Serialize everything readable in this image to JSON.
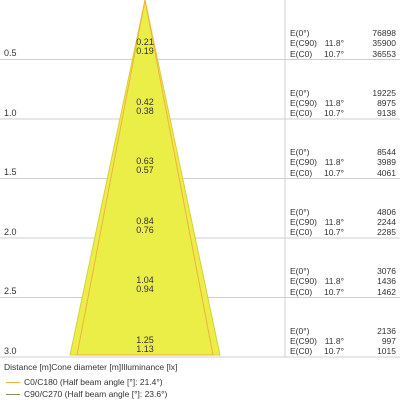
{
  "caption": "Distance [m]Cone diameter [m]Illuminance [lx]",
  "legend": [
    {
      "text": "C0/C180 (Half beam angle [°]: 21.4°)",
      "color": "#f0b040"
    },
    {
      "text": "C90/C270 (Half beam angle [°]: 23.6°)",
      "color": "#8c8c5a"
    }
  ],
  "colors": {
    "cone_fill": "#ecee48",
    "cone_edge": "#d4d040",
    "grid": "#cfcfcf"
  },
  "rows": [
    {
      "distance": "0.5",
      "d_c90": "0.21",
      "d_c0": "0.19",
      "e": [
        {
          "label": "E(0°)",
          "angle": "",
          "value": "76898"
        },
        {
          "label": "E(C90)",
          "angle": "11.8°",
          "value": "35900"
        },
        {
          "label": "E(C0)",
          "angle": "10.7°",
          "value": "36553"
        }
      ]
    },
    {
      "distance": "1.0",
      "d_c90": "0.42",
      "d_c0": "0.38",
      "e": [
        {
          "label": "E(0°)",
          "angle": "",
          "value": "19225"
        },
        {
          "label": "E(C90)",
          "angle": "11.8°",
          "value": "8975"
        },
        {
          "label": "E(C0)",
          "angle": "10.7°",
          "value": "9138"
        }
      ]
    },
    {
      "distance": "1.5",
      "d_c90": "0.63",
      "d_c0": "0.57",
      "e": [
        {
          "label": "E(0°)",
          "angle": "",
          "value": "8544"
        },
        {
          "label": "E(C90)",
          "angle": "11.8°",
          "value": "3989"
        },
        {
          "label": "E(C0)",
          "angle": "10.7°",
          "value": "4061"
        }
      ]
    },
    {
      "distance": "2.0",
      "d_c90": "0.84",
      "d_c0": "0.76",
      "e": [
        {
          "label": "E(0°)",
          "angle": "",
          "value": "4806"
        },
        {
          "label": "E(C90)",
          "angle": "11.8°",
          "value": "2244"
        },
        {
          "label": "E(C0)",
          "angle": "10.7°",
          "value": "2285"
        }
      ]
    },
    {
      "distance": "2.5",
      "d_c90": "1.04",
      "d_c0": "0.94",
      "e": [
        {
          "label": "E(0°)",
          "angle": "",
          "value": "3076"
        },
        {
          "label": "E(C90)",
          "angle": "11.8°",
          "value": "1436"
        },
        {
          "label": "E(C0)",
          "angle": "10.7°",
          "value": "1462"
        }
      ]
    },
    {
      "distance": "3.0",
      "d_c90": "1.25",
      "d_c0": "1.13",
      "e": [
        {
          "label": "E(0°)",
          "angle": "",
          "value": "2136"
        },
        {
          "label": "E(C90)",
          "angle": "11.8°",
          "value": "997"
        },
        {
          "label": "E(C0)",
          "angle": "10.7°",
          "value": "1015"
        }
      ]
    }
  ]
}
